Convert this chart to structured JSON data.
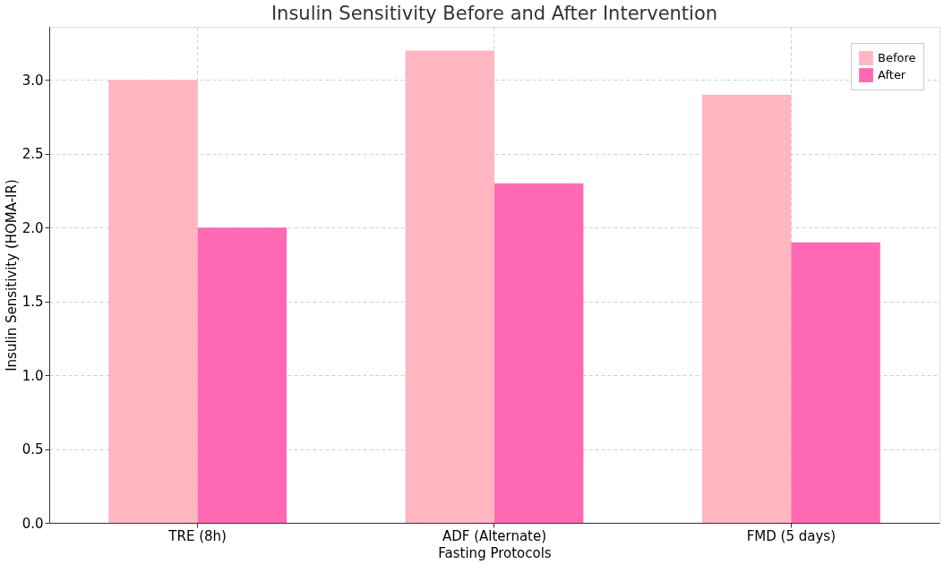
{
  "chart_data": {
    "type": "bar",
    "title": "Insulin Sensitivity Before and After Intervention",
    "xlabel": "Fasting Protocols",
    "ylabel": "Insulin Sensitivity (HOMA-IR)",
    "categories": [
      "TRE (8h)",
      "ADF (Alternate)",
      "FMD (5 days)"
    ],
    "series": [
      {
        "name": "Before",
        "color": "#ffb6c1",
        "values": [
          3.0,
          3.2,
          2.9
        ]
      },
      {
        "name": "After",
        "color": "#ff69b4",
        "values": [
          2.0,
          2.3,
          1.9
        ]
      }
    ],
    "ylim": [
      0,
      3.36
    ],
    "yticks": [
      {
        "value": 0,
        "label": "0.0"
      },
      0.5,
      {
        "value": 1,
        "label": "1.0"
      },
      1.5,
      {
        "value": 2,
        "label": "2.0"
      },
      2.5,
      {
        "value": 3,
        "label": "3.0"
      }
    ],
    "grid": true,
    "legend": "top right"
  }
}
